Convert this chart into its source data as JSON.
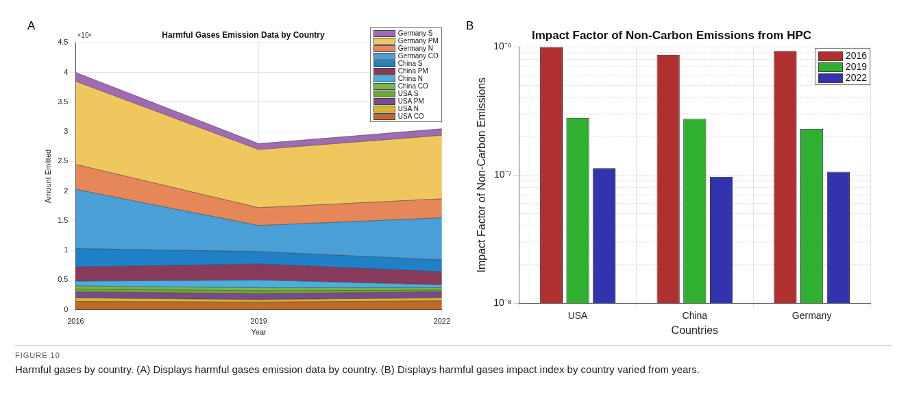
{
  "chart_data": [
    {
      "type": "area",
      "title": "Harmful Gases Emission Data by Country",
      "xlabel": "Year",
      "ylabel": "Amount Emitted",
      "x": [
        2016,
        2019,
        2022
      ],
      "xlim": [
        2016,
        2022
      ],
      "xticks": [
        2016,
        2019,
        2022
      ],
      "ylim": [
        0,
        4.5
      ],
      "yticks": [
        0,
        0.5,
        1,
        1.5,
        2,
        2.5,
        3,
        3.5,
        4,
        4.5
      ],
      "stacked": true,
      "grid": true,
      "legend": "top right",
      "annotations": [
        "A",
        "×10⁸"
      ],
      "series": [
        {
          "name": "USA CO",
          "color": "#c0692b",
          "values": [
            0.14,
            0.13,
            0.15
          ]
        },
        {
          "name": "USA N",
          "color": "#d9b52e",
          "values": [
            0.06,
            0.04,
            0.05
          ]
        },
        {
          "name": "USA PM",
          "color": "#7a4a8a",
          "values": [
            0.1,
            0.1,
            0.1
          ]
        },
        {
          "name": "USA S",
          "color": "#6aa83a",
          "values": [
            0.05,
            0.05,
            0.03
          ]
        },
        {
          "name": "China CO",
          "color": "#7cb548",
          "values": [
            0.05,
            0.05,
            0.04
          ]
        },
        {
          "name": "China N",
          "color": "#4aafe0",
          "values": [
            0.08,
            0.13,
            0.05
          ]
        },
        {
          "name": "China PM",
          "color": "#883a5c",
          "values": [
            0.24,
            0.27,
            0.22
          ]
        },
        {
          "name": "China S",
          "color": "#1f80c8",
          "values": [
            0.31,
            0.21,
            0.2
          ]
        },
        {
          "name": "Germany CO",
          "color": "#4a9fd6",
          "values": [
            1.0,
            0.44,
            0.71
          ]
        },
        {
          "name": "Germany N",
          "color": "#e6875a",
          "values": [
            0.42,
            0.3,
            0.32
          ]
        },
        {
          "name": "Germany PM",
          "color": "#f0c75f",
          "values": [
            1.4,
            0.98,
            1.07
          ]
        },
        {
          "name": "Germany S",
          "color": "#a06ab5",
          "values": [
            0.15,
            0.1,
            0.11
          ]
        }
      ]
    },
    {
      "type": "bar",
      "title": "Impact Factor of Non-Carbon Emissions from HPC",
      "xlabel": "Countries",
      "ylabel": "Impact Factor of Non-Carbon Emissions",
      "categories": [
        "USA",
        "China",
        "Germany"
      ],
      "log": true,
      "ylim": [
        1e-08,
        1e-06
      ],
      "yticks": [
        {
          "value": 1e-08,
          "label": "10⁻⁸"
        },
        {
          "value": 1e-07,
          "label": "10⁻⁷"
        },
        {
          "value": 1e-06,
          "label": "10⁻⁶"
        }
      ],
      "grid": true,
      "legend": "top right",
      "annotations": [
        "B",
        "FIGURE 10",
        "Harmful gases by country. (A) Displays harmful gases emission data by country. (B) Displays harmful gases impact index by country varied from years."
      ],
      "series": [
        {
          "name": "2016",
          "color": "#b03030",
          "values": [
            1e-06,
            8.7e-07,
            9.3e-07
          ]
        },
        {
          "name": "2019",
          "color": "#30b030",
          "values": [
            2.8e-07,
            2.75e-07,
            2.3e-07
          ]
        },
        {
          "name": "2022",
          "color": "#3333b0",
          "values": [
            1.13e-07,
            9.7e-08,
            1.06e-07
          ]
        }
      ]
    }
  ]
}
